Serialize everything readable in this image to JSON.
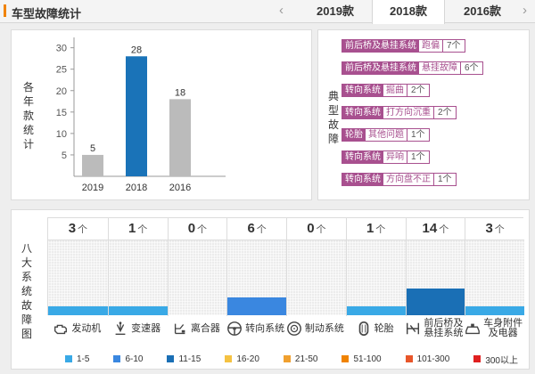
{
  "header": {
    "title": "车型故障统计",
    "prev_arrow": "‹",
    "next_arrow": "›",
    "tabs": [
      {
        "label": "2019款",
        "active": false
      },
      {
        "label": "2018款",
        "active": true
      },
      {
        "label": "2016款",
        "active": false
      }
    ],
    "accent_color": "#f08300"
  },
  "yearly": {
    "side_label": "各年款统计",
    "chart_data": {
      "type": "bar",
      "categories": [
        "2019",
        "2018",
        "2016"
      ],
      "values": [
        5,
        28,
        18
      ],
      "colors": [
        "#bbbbbb",
        "#1a73b8",
        "#bbbbbb"
      ],
      "yticks": [
        5,
        10,
        15,
        20,
        25,
        30
      ],
      "ylim": [
        0,
        32
      ],
      "grid": false
    }
  },
  "typical": {
    "side_label": "典型故障",
    "items": [
      {
        "category": "前后桥及悬挂系统",
        "issue": "跑偏",
        "count": "7个"
      },
      {
        "category": "前后桥及悬挂系统",
        "issue": "悬挂故障",
        "count": "6个"
      },
      {
        "category": "转向系统",
        "issue": "掘曲",
        "count": "2个"
      },
      {
        "category": "转向系统",
        "issue": "打方向沉重",
        "count": "2个"
      },
      {
        "category": "轮胎",
        "issue": "其他问题",
        "count": "1个"
      },
      {
        "category": "转向系统",
        "issue": "异响",
        "count": "1个"
      },
      {
        "category": "转向系统",
        "issue": "方向盘不正",
        "count": "1个"
      }
    ],
    "tag_color": "#a8508f"
  },
  "eight": {
    "side_label": "八大系统故障图",
    "unit": "个",
    "systems": [
      {
        "name": "发动机",
        "count": "3",
        "level": 3,
        "color": "#39a9e6",
        "icon": "engine-icon"
      },
      {
        "name": "变速器",
        "count": "1",
        "level": 1,
        "color": "#39a9e6",
        "icon": "transmission-icon"
      },
      {
        "name": "离合器",
        "count": "0",
        "level": 0,
        "color": "#39a9e6",
        "icon": "clutch-icon"
      },
      {
        "name": "转向系统",
        "count": "6",
        "level": 6,
        "color": "#3a87e0",
        "icon": "steering-wheel-icon"
      },
      {
        "name": "制动系统",
        "count": "0",
        "level": 0,
        "color": "#39a9e6",
        "icon": "brake-disc-icon"
      },
      {
        "name": "轮胎",
        "count": "1",
        "level": 1,
        "color": "#39a9e6",
        "icon": "tire-icon"
      },
      {
        "name": "前后桥及\n悬挂系统",
        "count": "14",
        "level": 14,
        "color": "#1a6fb5",
        "icon": "suspension-icon"
      },
      {
        "name": "车身附件\n及电器",
        "count": "3",
        "level": 3,
        "color": "#39a9e6",
        "icon": "car-body-icon"
      }
    ],
    "legend": [
      {
        "label": "1-5",
        "color": "#39a9e6"
      },
      {
        "label": "6-10",
        "color": "#3a87e0"
      },
      {
        "label": "11-15",
        "color": "#1a6fb5"
      },
      {
        "label": "16-20",
        "color": "#f5c242"
      },
      {
        "label": "21-50",
        "color": "#f0a030"
      },
      {
        "label": "51-100",
        "color": "#f08300"
      },
      {
        "label": "101-300",
        "color": "#e8562a"
      },
      {
        "label": "300以上",
        "color": "#e02020"
      }
    ]
  }
}
